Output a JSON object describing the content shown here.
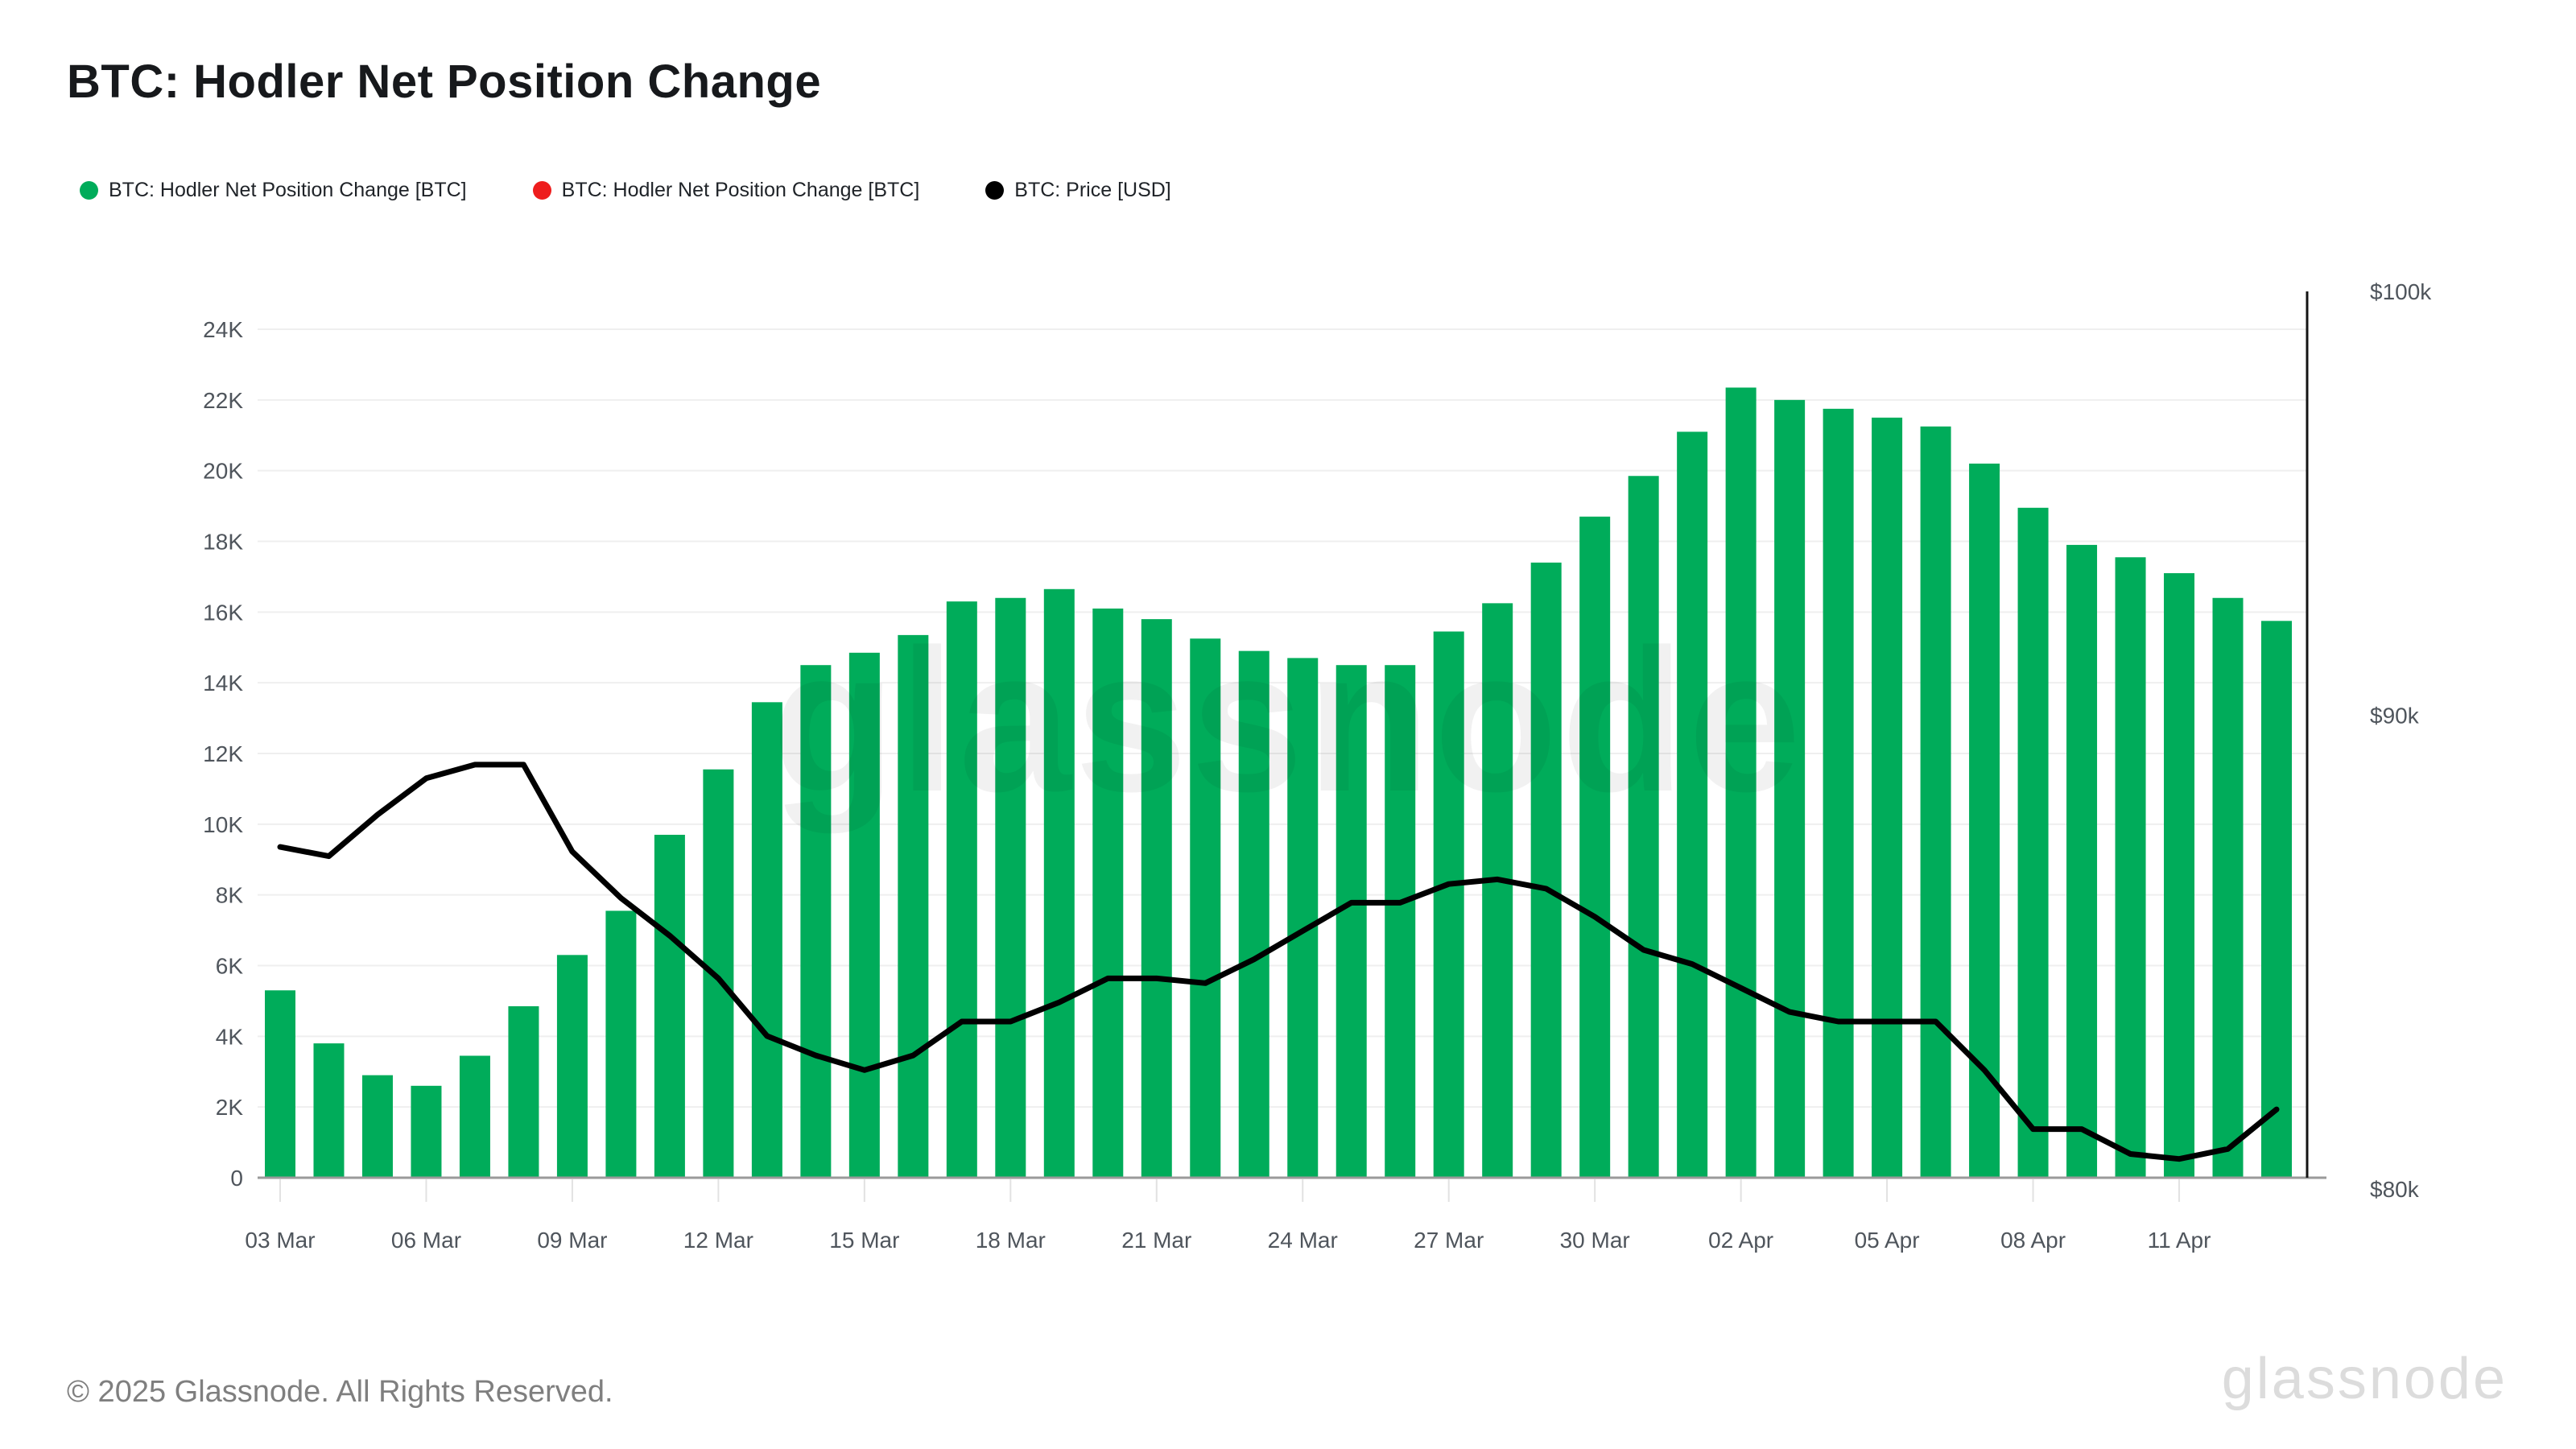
{
  "header": {
    "title": "BTC: Hodler Net Position Change"
  },
  "legend": {
    "items": [
      {
        "label": "BTC: Hodler Net Position Change [BTC]",
        "color": "#00AC5A"
      },
      {
        "label": "BTC: Hodler Net Position Change [BTC]",
        "color": "#ee1d1d"
      },
      {
        "label": "BTC: Price [USD]",
        "color": "#000000"
      }
    ]
  },
  "watermark": "glassnode",
  "footer": {
    "copyright": "© 2025 Glassnode. All Rights Reserved.",
    "brand": "glassnode"
  },
  "chart_data": {
    "type": "bar",
    "title": "BTC: Hodler Net Position Change",
    "x": [
      "03 Mar",
      "04 Mar",
      "05 Mar",
      "06 Mar",
      "07 Mar",
      "08 Mar",
      "09 Mar",
      "10 Mar",
      "11 Mar",
      "12 Mar",
      "13 Mar",
      "14 Mar",
      "15 Mar",
      "16 Mar",
      "17 Mar",
      "18 Mar",
      "19 Mar",
      "20 Mar",
      "21 Mar",
      "22 Mar",
      "23 Mar",
      "24 Mar",
      "25 Mar",
      "26 Mar",
      "27 Mar",
      "28 Mar",
      "29 Mar",
      "30 Mar",
      "31 Mar",
      "01 Apr",
      "02 Apr",
      "03 Apr",
      "04 Apr",
      "05 Apr",
      "06 Apr",
      "07 Apr",
      "08 Apr",
      "09 Apr",
      "10 Apr",
      "11 Apr",
      "12 Apr",
      "13 Apr"
    ],
    "series": [
      {
        "name": "BTC: Hodler Net Position Change [BTC]",
        "type": "bar",
        "axis": "left",
        "color": "#00AC5A",
        "values": [
          5300,
          3800,
          2900,
          2600,
          3450,
          4850,
          6300,
          7550,
          9700,
          11550,
          13450,
          14500,
          14850,
          15350,
          16300,
          16400,
          16650,
          16100,
          15800,
          15250,
          14900,
          14700,
          14500,
          14500,
          15450,
          16250,
          17400,
          18700,
          19850,
          21100,
          22350,
          22000,
          21750,
          21500,
          21250,
          20200,
          18950,
          17900,
          17550,
          17100,
          16400,
          15750
        ]
      },
      {
        "name": "BTC: Price [USD]",
        "type": "line",
        "axis": "right",
        "color": "#000000",
        "values": [
          87100,
          86900,
          87800,
          88600,
          88900,
          88900,
          87000,
          86000,
          85200,
          84300,
          83100,
          82700,
          82400,
          82700,
          83400,
          83400,
          83800,
          84300,
          84300,
          84200,
          84700,
          85300,
          85900,
          85900,
          86300,
          86400,
          86200,
          85600,
          84900,
          84600,
          84100,
          83600,
          83400,
          83400,
          83400,
          82400,
          81200,
          81200,
          80700,
          80600,
          80800,
          81600
        ]
      }
    ],
    "left_axis": {
      "min": 0,
      "max": 24000,
      "ticks": [
        {
          "label": "0",
          "value": 0
        },
        {
          "label": "2K",
          "value": 2000
        },
        {
          "label": "4K",
          "value": 4000
        },
        {
          "label": "6K",
          "value": 6000
        },
        {
          "label": "8K",
          "value": 8000
        },
        {
          "label": "10K",
          "value": 10000
        },
        {
          "label": "12K",
          "value": 12000
        },
        {
          "label": "14K",
          "value": 14000
        },
        {
          "label": "16K",
          "value": 16000
        },
        {
          "label": "18K",
          "value": 18000
        },
        {
          "label": "20K",
          "value": 20000
        },
        {
          "label": "22K",
          "value": 22000
        },
        {
          "label": "24K",
          "value": 24000
        }
      ]
    },
    "right_axis": {
      "scale": "log",
      "min": 80000,
      "max": 100000,
      "ticks": [
        {
          "label": "$80k",
          "value": 80000
        },
        {
          "label": "$90k",
          "value": 90000
        },
        {
          "label": "$100k",
          "value": 100000
        }
      ]
    },
    "x_ticks": [
      {
        "index": 0,
        "label": "03 Mar"
      },
      {
        "index": 3,
        "label": "06 Mar"
      },
      {
        "index": 6,
        "label": "09 Mar"
      },
      {
        "index": 9,
        "label": "12 Mar"
      },
      {
        "index": 12,
        "label": "15 Mar"
      },
      {
        "index": 15,
        "label": "18 Mar"
      },
      {
        "index": 18,
        "label": "21 Mar"
      },
      {
        "index": 21,
        "label": "24 Mar"
      },
      {
        "index": 24,
        "label": "27 Mar"
      },
      {
        "index": 27,
        "label": "30 Mar"
      },
      {
        "index": 30,
        "label": "02 Apr"
      },
      {
        "index": 33,
        "label": "05 Apr"
      },
      {
        "index": 36,
        "label": "08 Apr"
      },
      {
        "index": 39,
        "label": "11 Apr"
      }
    ],
    "grid": "horizontal",
    "legend_position": "top-left",
    "colors": {
      "grid": "#efefef",
      "axis_line": "#9a9a9a",
      "tick_mark": "#e2e2e2",
      "right_border": "#141414"
    }
  }
}
